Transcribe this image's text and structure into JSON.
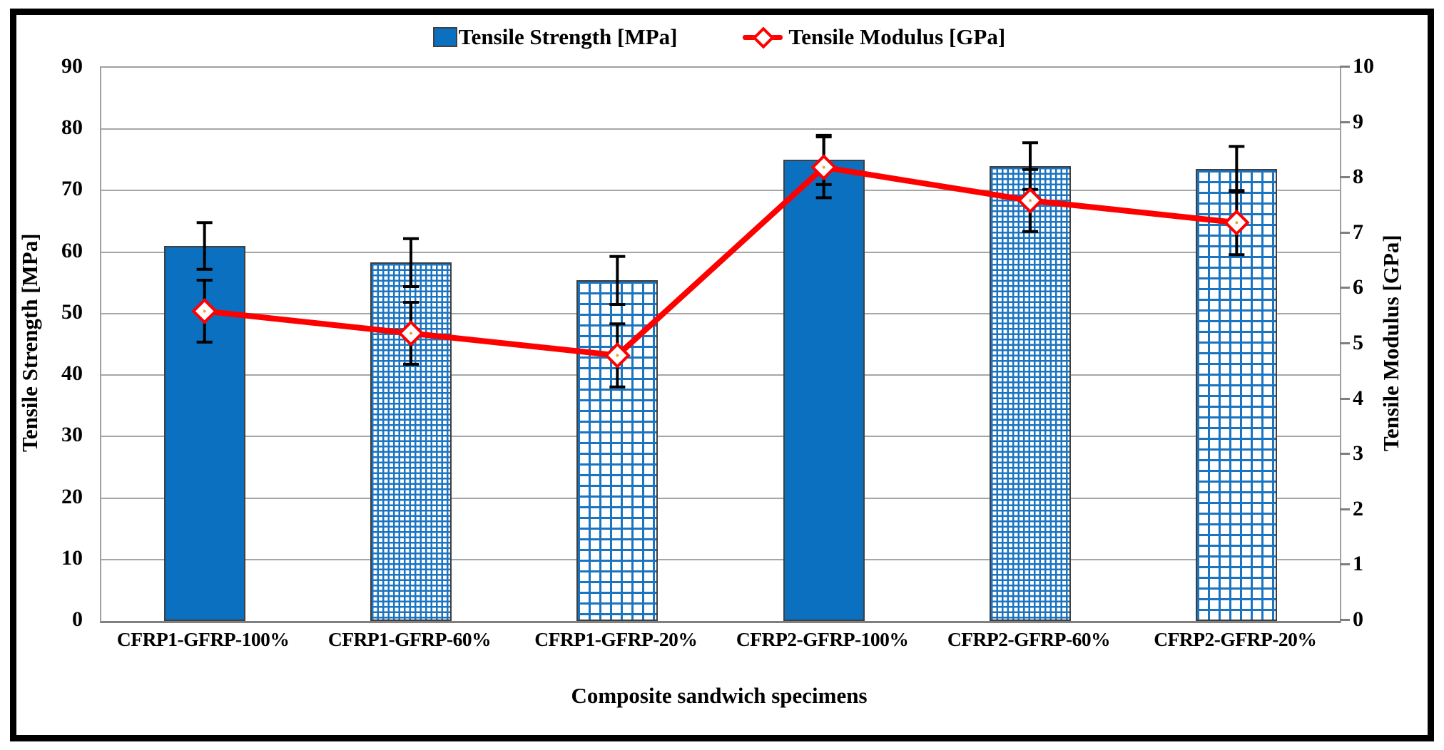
{
  "legend": {
    "items": [
      {
        "label": "Tensile Strength [MPa]",
        "swatch": "blue-filled-square",
        "color": "#0b70c0"
      },
      {
        "label": "Tensile Modulus [GPa]",
        "swatch": "red-line-open-diamond",
        "color": "#ff0000"
      }
    ]
  },
  "chart_data": {
    "type": "bar",
    "subtype": "bar-and-line-dual-axis",
    "categories": [
      "CFRP1-GFRP-100%",
      "CFRP1-GFRP-60%",
      "CFRP1-GFRP-20%",
      "CFRP2-GFRP-100%",
      "CFRP2-GFRP-60%",
      "CFRP2-GFRP-20%"
    ],
    "series": [
      {
        "name": "Tensile Strength [MPa]",
        "type": "bar",
        "axis": "left",
        "values": [
          61,
          58.3,
          55.4,
          75,
          74,
          73.5
        ],
        "errors": [
          3.8,
          3.9,
          3.9,
          4.0,
          3.8,
          3.7
        ],
        "fill_styles": [
          "solid",
          "fine-grid",
          "coarse-grid",
          "solid",
          "fine-grid",
          "coarse-grid"
        ],
        "color": "#0b70c0"
      },
      {
        "name": "Tensile Modulus [GPa]",
        "type": "line",
        "axis": "right",
        "values": [
          5.6,
          5.2,
          4.8,
          8.2,
          7.6,
          7.2
        ],
        "errors": [
          0.56,
          0.56,
          0.57,
          0.55,
          0.56,
          0.58
        ],
        "marker": "open-diamond",
        "color": "#ff0000"
      }
    ],
    "xlabel": "Composite sandwich specimens",
    "ylabel_left": "Tensile Strength [MPa]",
    "ylabel_right": "Tensile Modulus [GPa]",
    "ylim_left": [
      0,
      90
    ],
    "ylim_right": [
      0,
      10
    ],
    "left_ticks": [
      0,
      10,
      20,
      30,
      40,
      50,
      60,
      70,
      80,
      90
    ],
    "right_ticks": [
      0,
      1,
      2,
      3,
      4,
      5,
      6,
      7,
      8,
      9,
      10
    ],
    "grid": "horizontal-major-left-axis",
    "legend_position": "top-center",
    "colors": {
      "bar_blue": "#0b70c0",
      "line_red": "#ff0000",
      "gridline": "#a6a6a6",
      "error_bar": "#000000"
    }
  }
}
